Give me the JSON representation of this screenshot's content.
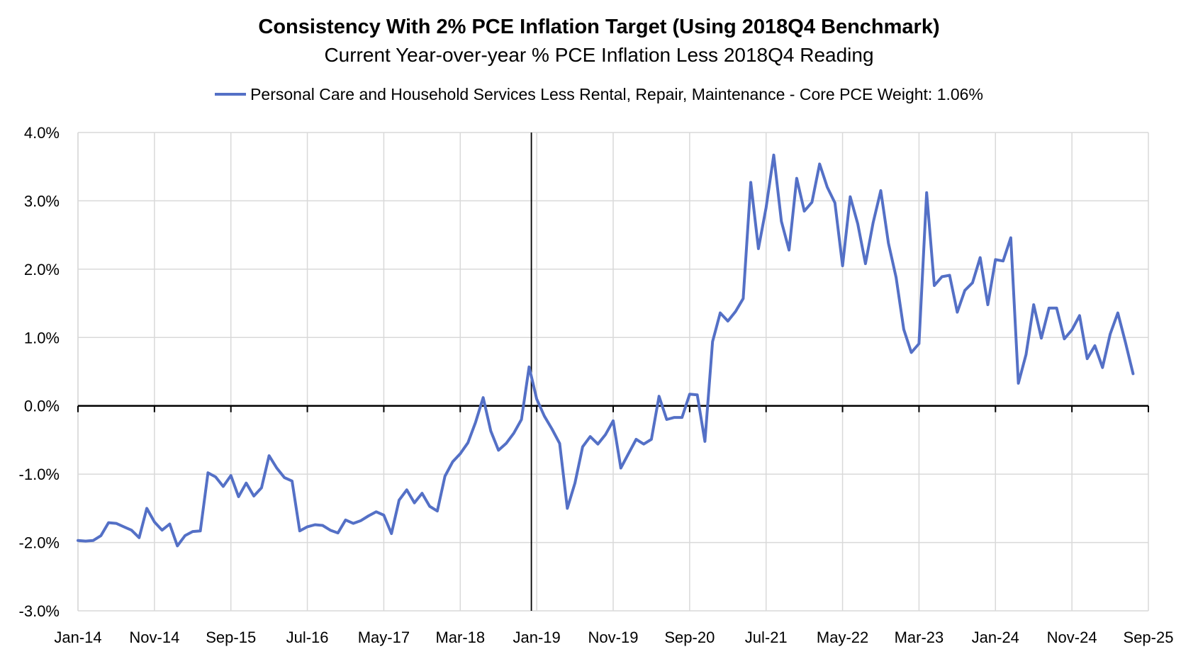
{
  "chart_data": {
    "type": "line",
    "title": "Consistency With 2% PCE Inflation Target (Using 2018Q4 Benchmark)",
    "subtitle": "Current Year-over-year % PCE Inflation Less 2018Q4 Reading",
    "ylim": [
      -3.0,
      4.0
    ],
    "y_ticks": [
      "4.0%",
      "3.0%",
      "2.0%",
      "1.0%",
      "0.0%",
      "-1.0%",
      "-2.0%",
      "-3.0%"
    ],
    "x_ticks": [
      "Jan-14",
      "Nov-14",
      "Sep-15",
      "Jul-16",
      "May-17",
      "Mar-18",
      "Jan-19",
      "Nov-19",
      "Sep-20",
      "Jul-21",
      "May-22",
      "Mar-23",
      "Jan-24",
      "Nov-24",
      "Sep-25"
    ],
    "x_start": "Jan-14",
    "x_end": "Sep-25",
    "reference_line_x": "Dec-18",
    "grid": true,
    "legend_position": "top",
    "line_color": "#5470C6",
    "series": [
      {
        "name": "Personal Care and Household Services Less Rental, Repair, Maintenance  - Core PCE Weight: 1.06%",
        "values": [
          -1.97,
          -1.98,
          -1.97,
          -1.9,
          -1.71,
          -1.72,
          -1.77,
          -1.82,
          -1.93,
          -1.5,
          -1.7,
          -1.82,
          -1.73,
          -2.05,
          -1.9,
          -1.84,
          -1.83,
          -0.98,
          -1.04,
          -1.18,
          -1.02,
          -1.33,
          -1.13,
          -1.32,
          -1.2,
          -0.73,
          -0.91,
          -1.05,
          -1.1,
          -1.83,
          -1.77,
          -1.74,
          -1.75,
          -1.82,
          -1.86,
          -1.67,
          -1.72,
          -1.68,
          -1.61,
          -1.55,
          -1.6,
          -1.87,
          -1.38,
          -1.23,
          -1.42,
          -1.28,
          -1.47,
          -1.54,
          -1.03,
          -0.82,
          -0.7,
          -0.54,
          -0.24,
          0.12,
          -0.37,
          -0.65,
          -0.55,
          -0.4,
          -0.2,
          0.57,
          0.1,
          -0.15,
          -0.34,
          -0.55,
          -1.5,
          -1.13,
          -0.6,
          -0.45,
          -0.56,
          -0.42,
          -0.22,
          -0.91,
          -0.7,
          -0.49,
          -0.56,
          -0.49,
          0.14,
          -0.2,
          -0.17,
          -0.17,
          0.17,
          0.16,
          -0.52,
          0.94,
          1.36,
          1.24,
          1.38,
          1.57,
          3.27,
          2.3,
          2.9,
          3.67,
          2.7,
          2.28,
          3.33,
          2.85,
          2.98,
          3.54,
          3.2,
          2.97,
          2.05,
          3.06,
          2.66,
          2.08,
          2.68,
          3.15,
          2.38,
          1.88,
          1.12,
          0.78,
          0.91,
          3.12,
          1.76,
          1.89,
          1.91,
          1.37,
          1.69,
          1.8,
          2.17,
          1.48,
          2.14,
          2.12,
          2.46,
          0.33,
          0.75,
          1.48,
          0.99,
          1.43,
          1.43,
          0.98,
          1.11,
          1.32,
          0.69,
          0.88,
          0.56,
          1.05,
          1.36,
          0.93,
          0.47
        ]
      }
    ]
  }
}
